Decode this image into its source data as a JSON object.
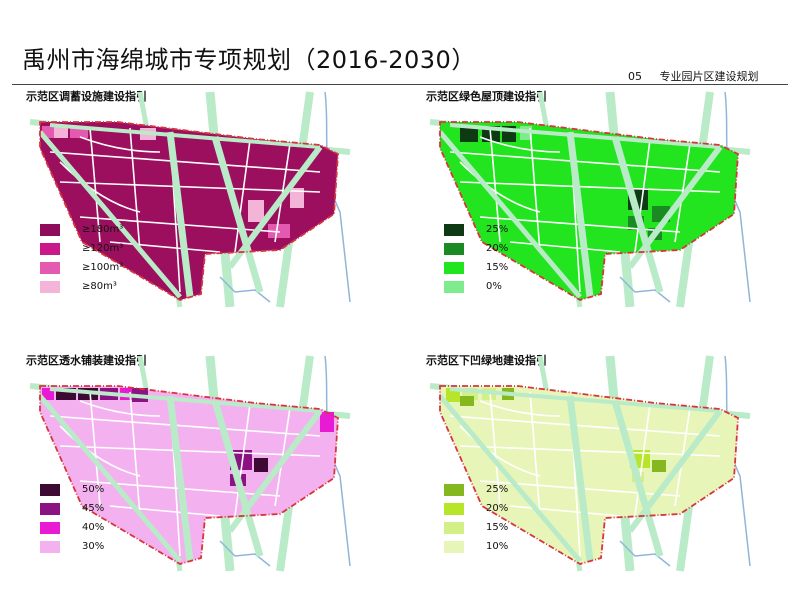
{
  "header": {
    "title": "禹州市海绵城市专项规划（2016-2030）",
    "section_number": "05",
    "section_title": "专业园片区建设规划"
  },
  "colors": {
    "road_green": "#b9ebc8",
    "boundary": "#d9343d",
    "water": "#8fb6d9"
  },
  "panels": [
    {
      "label": "示范区调蓄设施建设指引",
      "base_color": "#9c0f5e",
      "legend": [
        {
          "label": "≥180m³",
          "color": "#8e0c59"
        },
        {
          "label": "≥120m³",
          "color": "#c8188a"
        },
        {
          "label": "≥100m³",
          "color": "#e35ab0"
        },
        {
          "label": "≥80m³",
          "color": "#f3b4d7"
        }
      ]
    },
    {
      "label": "示范区绿色屋顶建设指引",
      "base_color": "#22e41f",
      "legend": [
        {
          "label": "25%",
          "color": "#0d3a12"
        },
        {
          "label": "20%",
          "color": "#1a8b22"
        },
        {
          "label": "15%",
          "color": "#22e41f"
        },
        {
          "label": "0%",
          "color": "#7eec8c"
        }
      ]
    },
    {
      "label": "示范区透水铺装建设指引",
      "base_color": "#f3b2ef",
      "legend": [
        {
          "label": "50%",
          "color": "#3d0a33"
        },
        {
          "label": "45%",
          "color": "#8a1283"
        },
        {
          "label": "40%",
          "color": "#e81ad3"
        },
        {
          "label": "30%",
          "color": "#f3b2ef"
        }
      ]
    },
    {
      "label": "示范区下凹绿地建设指引",
      "base_color": "#e8f5b9",
      "legend": [
        {
          "label": "25%",
          "color": "#85b81e"
        },
        {
          "label": "20%",
          "color": "#b6e52a"
        },
        {
          "label": "15%",
          "color": "#d3ef87"
        },
        {
          "label": "10%",
          "color": "#e8f5b9"
        }
      ]
    }
  ]
}
